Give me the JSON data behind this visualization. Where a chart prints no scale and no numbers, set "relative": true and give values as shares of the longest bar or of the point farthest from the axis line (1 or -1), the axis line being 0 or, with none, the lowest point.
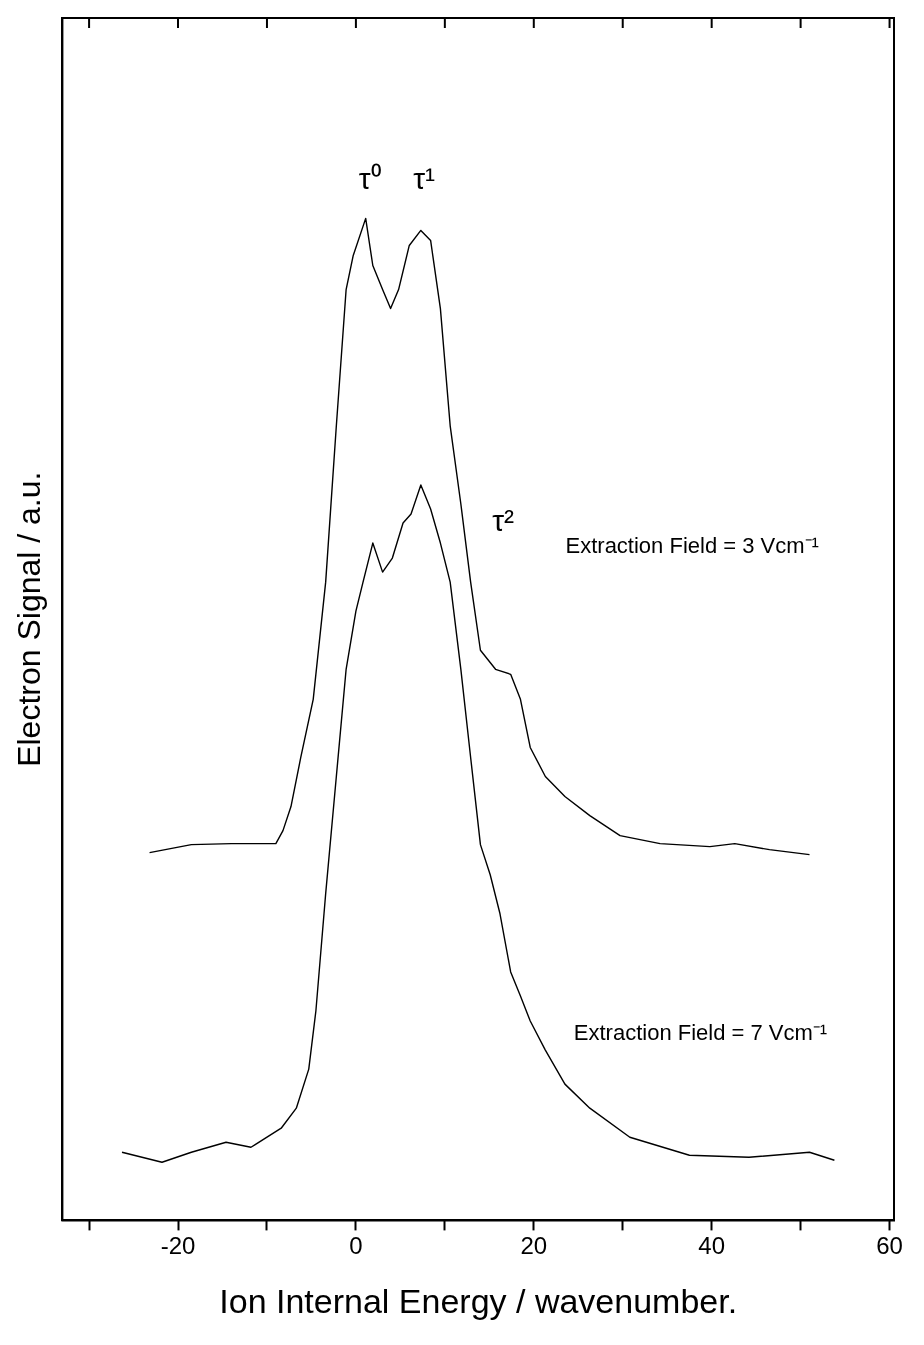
{
  "chart_data": {
    "type": "line",
    "xlabel": "Ion Internal Energy / wavenumber.",
    "ylabel": "Electron Signal / a.u.",
    "relative": true,
    "xlim": [
      -33,
      60.5
    ],
    "xticks": [
      {
        "value": -30,
        "label": null
      },
      -20,
      {
        "value": -10,
        "label": null
      },
      0,
      {
        "value": 10,
        "label": null
      },
      20,
      {
        "value": 30,
        "label": null
      },
      40,
      {
        "value": 50,
        "label": null
      },
      60
    ],
    "grid": false,
    "legend": false,
    "marker": "none",
    "line_style": "solid",
    "series": [
      {
        "color": "#000000",
        "x": [
          -23.2,
          -18.5,
          -14,
          -9,
          -8.2,
          -7.3,
          -6.2,
          -4.8,
          -3.4,
          -2.2,
          -1.1,
          -0.3,
          1.1,
          1.9,
          3.0,
          3.9,
          4.8,
          6.0,
          7.3,
          8.4,
          9.5,
          10.6,
          11.8,
          12.9,
          14,
          15.7,
          17.4,
          18.5,
          19.6,
          21.3,
          23.5,
          26.3,
          29.7,
          34.2,
          39.8,
          42.6,
          46.5,
          51
        ],
        "values": [
          0.367,
          0.375,
          0.376,
          0.376,
          0.389,
          0.413,
          0.462,
          0.52,
          0.637,
          0.793,
          0.929,
          0.963,
          1.0,
          0.953,
          0.929,
          0.91,
          0.929,
          0.973,
          0.988,
          0.978,
          0.91,
          0.793,
          0.715,
          0.637,
          0.569,
          0.55,
          0.545,
          0.52,
          0.472,
          0.443,
          0.423,
          0.404,
          0.384,
          0.376,
          0.373,
          0.376,
          0.37,
          0.365
        ]
      },
      {
        "color": "#000000",
        "x": [
          -26.3,
          -21.8,
          -18.5,
          -14.6,
          -11.8,
          -8.4,
          -6.7,
          -5.3,
          -4.5,
          -3.4,
          -2.2,
          -1.1,
          0,
          0.8,
          1.9,
          3.0,
          4.1,
          5.3,
          6.2,
          7.3,
          8.4,
          9.5,
          10.6,
          11.8,
          12.9,
          14,
          15.1,
          16.2,
          17.4,
          18.5,
          19.6,
          21.3,
          23.5,
          26.3,
          30.8,
          37.5,
          44.2,
          51,
          53.8
        ],
        "values": [
          0.068,
          0.058,
          0.068,
          0.078,
          0.073,
          0.092,
          0.112,
          0.151,
          0.209,
          0.326,
          0.443,
          0.55,
          0.608,
          0.637,
          0.676,
          0.647,
          0.661,
          0.696,
          0.705,
          0.734,
          0.71,
          0.676,
          0.637,
          0.55,
          0.462,
          0.375,
          0.345,
          0.306,
          0.248,
          0.224,
          0.199,
          0.17,
          0.136,
          0.112,
          0.083,
          0.065,
          0.063,
          0.068,
          0.06
        ]
      }
    ],
    "annotations": [
      "τ⁰",
      "τ¹",
      "τ²",
      "Extraction Field = 3 Vcm⁻¹",
      "Extraction Field = 7 Vcm⁻¹"
    ]
  }
}
